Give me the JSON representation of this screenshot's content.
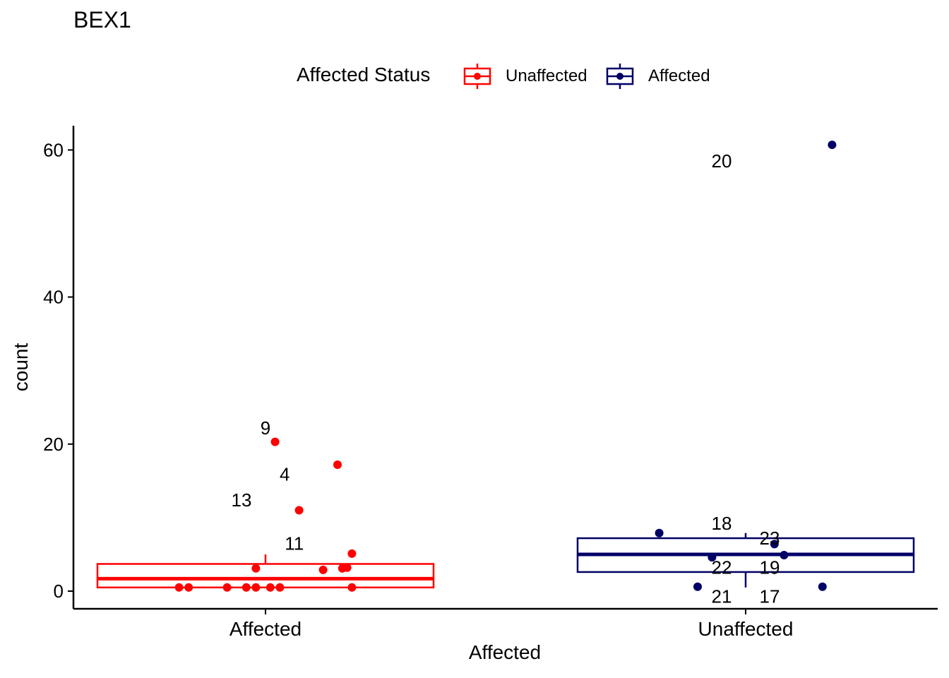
{
  "chart_data": {
    "type": "boxplot",
    "title": "BEX1",
    "xlabel": "Affected",
    "ylabel": "count",
    "ylim": [
      -2.4,
      63.3
    ],
    "yticks": [
      0,
      20,
      40,
      60
    ],
    "categories": [
      "Affected",
      "Unaffected"
    ],
    "legend": {
      "title": "Affected Status",
      "position": "top",
      "entries": [
        {
          "name": "Unaffected",
          "color": "#ff0000"
        },
        {
          "name": "Affected",
          "color": "#000066"
        }
      ]
    },
    "grid": false,
    "boxes": [
      {
        "category": "Affected",
        "legend_group": "Unaffected",
        "color": "#ff0000",
        "q1": 0.5,
        "median": 1.7,
        "q3": 3.7,
        "whisker_low": 0.5,
        "whisker_high": 5.0,
        "points": [
          {
            "x": -0.18,
            "y": 0.5
          },
          {
            "x": -0.16,
            "y": 0.5
          },
          {
            "x": -0.08,
            "y": 0.5
          },
          {
            "x": -0.04,
            "y": 0.5
          },
          {
            "x": -0.02,
            "y": 0.5
          },
          {
            "x": 0.01,
            "y": 0.5
          },
          {
            "x": 0.03,
            "y": 0.5
          },
          {
            "x": 0.18,
            "y": 0.5
          },
          {
            "x": -0.02,
            "y": 3.1
          },
          {
            "x": 0.12,
            "y": 2.9
          },
          {
            "x": 0.16,
            "y": 3.1
          },
          {
            "x": 0.17,
            "y": 3.2
          },
          {
            "x": 0.18,
            "y": 5.1
          },
          {
            "x": 0.07,
            "y": 11.0
          },
          {
            "x": 0.15,
            "y": 17.2
          },
          {
            "x": 0.02,
            "y": 20.3
          }
        ],
        "labels": [
          {
            "text": "9",
            "x": 0.0,
            "y": 22.2
          },
          {
            "text": "4",
            "x": 0.04,
            "y": 15.9
          },
          {
            "text": "13",
            "x": -0.05,
            "y": 12.4
          },
          {
            "text": "11",
            "x": 0.06,
            "y": 6.5
          }
        ]
      },
      {
        "category": "Unaffected",
        "legend_group": "Affected",
        "color": "#000066",
        "q1": 2.6,
        "median": 5.0,
        "q3": 7.2,
        "whisker_low": 0.5,
        "whisker_high": 7.9,
        "points": [
          {
            "x": -0.18,
            "y": 7.9
          },
          {
            "x": -0.07,
            "y": 4.6
          },
          {
            "x": 0.06,
            "y": 6.4
          },
          {
            "x": 0.08,
            "y": 4.9
          },
          {
            "x": -0.1,
            "y": 0.6
          },
          {
            "x": 0.16,
            "y": 0.6
          },
          {
            "x": 0.18,
            "y": 60.7
          }
        ],
        "labels": [
          {
            "text": "20",
            "x": -0.05,
            "y": 58.5
          },
          {
            "text": "18",
            "x": -0.05,
            "y": 9.2
          },
          {
            "text": "23",
            "x": 0.05,
            "y": 7.2
          },
          {
            "text": "22",
            "x": -0.05,
            "y": 3.2
          },
          {
            "text": "19",
            "x": 0.05,
            "y": 3.2
          },
          {
            "text": "21",
            "x": -0.05,
            "y": -0.7
          },
          {
            "text": "17",
            "x": 0.05,
            "y": -0.7
          }
        ]
      }
    ]
  }
}
